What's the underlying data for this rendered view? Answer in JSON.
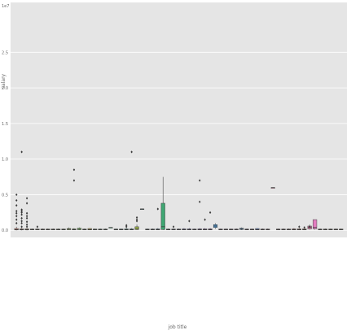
{
  "chart_data": {
    "type": "box",
    "title": "",
    "xlabel": "job title",
    "ylabel": "salary",
    "y_unit_label": "1e7",
    "ylim": [
      -0.1,
      3.2
    ],
    "y_ticks": [
      0.0,
      0.5,
      1.0,
      1.5,
      2.0,
      2.5
    ],
    "y_tick_labels": [
      "0.0",
      "0.5",
      "1.0",
      "1.5",
      "2.0",
      "2.5"
    ],
    "grid": true,
    "legend": "none",
    "background": "#e5e5e5",
    "categories_shown_count": 63,
    "boxes": [
      {
        "i": 1,
        "q1": 0.005,
        "median": 0.012,
        "q3": 0.025,
        "whisker_low": 0.0,
        "whisker_high": 0.05,
        "outliers": [
          0.1,
          0.15,
          0.2,
          0.24,
          0.27,
          0.35,
          0.42,
          0.5
        ],
        "color": "#e58a7c"
      },
      {
        "i": 2,
        "q1": 0.005,
        "median": 0.012,
        "q3": 0.02,
        "whisker_low": 0.0,
        "whisker_high": 0.03,
        "outliers": [
          0.05,
          0.1,
          0.13,
          0.17,
          0.22,
          0.25,
          0.27,
          0.29,
          1.1
        ],
        "color": "#dc8f6a"
      },
      {
        "i": 3,
        "q1": 0.005,
        "median": 0.012,
        "q3": 0.02,
        "whisker_low": 0.0,
        "whisker_high": 0.03,
        "outliers": [
          0.05,
          0.08,
          0.12,
          0.17,
          0.2,
          0.24,
          0.38,
          0.45
        ],
        "color": "#d69a62"
      },
      {
        "i": 4,
        "q1": 0.006,
        "median": 0.012,
        "q3": 0.018,
        "whisker_low": 0.003,
        "whisker_high": 0.024,
        "outliers": [],
        "color": "#d2a060"
      },
      {
        "i": 5,
        "q1": 0.006,
        "median": 0.012,
        "q3": 0.018,
        "whisker_low": 0.003,
        "whisker_high": 0.024,
        "outliers": [
          0.05
        ],
        "color": "#cca55c"
      },
      {
        "i": 6,
        "q1": 0.006,
        "median": 0.012,
        "q3": 0.018,
        "whisker_low": 0.003,
        "whisker_high": 0.024,
        "outliers": [],
        "color": "#c5aa5a"
      },
      {
        "i": 7,
        "q1": 0.006,
        "median": 0.012,
        "q3": 0.018,
        "whisker_low": 0.003,
        "whisker_high": 0.024,
        "outliers": [],
        "color": "#beaf58"
      },
      {
        "i": 8,
        "q1": 0.006,
        "median": 0.012,
        "q3": 0.018,
        "whisker_low": 0.003,
        "whisker_high": 0.024,
        "outliers": [],
        "color": "#b6b457"
      },
      {
        "i": 9,
        "q1": 0.006,
        "median": 0.012,
        "q3": 0.018,
        "whisker_low": 0.003,
        "whisker_high": 0.024,
        "outliers": [],
        "color": "#adb856"
      },
      {
        "i": 10,
        "q1": 0.006,
        "median": 0.012,
        "q3": 0.018,
        "whisker_low": 0.003,
        "whisker_high": 0.024,
        "outliers": [],
        "color": "#a3bc57"
      },
      {
        "i": 11,
        "q1": 0.008,
        "median": 0.015,
        "q3": 0.025,
        "whisker_low": 0.003,
        "whisker_high": 0.04,
        "outliers": [],
        "color": "#98c05a"
      },
      {
        "i": 12,
        "q1": 0.006,
        "median": 0.012,
        "q3": 0.02,
        "whisker_low": 0.003,
        "whisker_high": 0.03,
        "outliers": [
          0.7,
          0.85
        ],
        "color": "#8cc35e"
      },
      {
        "i": 13,
        "q1": 0.008,
        "median": 0.015,
        "q3": 0.03,
        "whisker_low": 0.003,
        "whisker_high": 0.04,
        "outliers": [],
        "color": "#7fc563"
      },
      {
        "i": 14,
        "q1": 0.006,
        "median": 0.012,
        "q3": 0.018,
        "whisker_low": 0.003,
        "whisker_high": 0.024,
        "outliers": [],
        "color": "#72c66a"
      },
      {
        "i": 15,
        "q1": 0.006,
        "median": 0.012,
        "q3": 0.025,
        "whisker_low": 0.003,
        "whisker_high": 0.03,
        "outliers": [],
        "color": "#c8b45a"
      },
      {
        "i": 16,
        "q1": 0.006,
        "median": 0.012,
        "q3": 0.018,
        "whisker_low": 0.003,
        "whisker_high": 0.024,
        "outliers": [],
        "color": "#64c772"
      },
      {
        "i": 17,
        "q1": 0.006,
        "median": 0.012,
        "q3": 0.018,
        "whisker_low": 0.003,
        "whisker_high": 0.024,
        "outliers": [],
        "color": "#5cc77c"
      },
      {
        "i": 18,
        "q1": 0.006,
        "median": 0.012,
        "q3": 0.018,
        "whisker_low": 0.003,
        "whisker_high": 0.024,
        "outliers": [],
        "color": "#56c687"
      },
      {
        "i": 19,
        "q1": 0.04,
        "median": 0.04,
        "q3": 0.04,
        "whisker_low": 0.04,
        "whisker_high": 0.04,
        "outliers": [],
        "color": "#52c491"
      },
      {
        "i": 20,
        "q1": 0.006,
        "median": 0.012,
        "q3": 0.018,
        "whisker_low": 0.003,
        "whisker_high": 0.024,
        "outliers": [],
        "color": "#50c29b"
      },
      {
        "i": 21,
        "q1": 0.006,
        "median": 0.012,
        "q3": 0.018,
        "whisker_low": 0.003,
        "whisker_high": 0.024,
        "outliers": [],
        "color": "#50bfa4"
      },
      {
        "i": 22,
        "q1": 0.006,
        "median": 0.012,
        "q3": 0.02,
        "whisker_low": 0.003,
        "whisker_high": 0.03,
        "outliers": [
          0.05,
          0.07
        ],
        "color": "#52bcad"
      },
      {
        "i": 23,
        "q1": 0.006,
        "median": 0.012,
        "q3": 0.02,
        "whisker_low": 0.003,
        "whisker_high": 0.03,
        "outliers": [
          1.1
        ],
        "color": "#55b8b5"
      },
      {
        "i": 24,
        "q1": 0.01,
        "median": 0.025,
        "q3": 0.05,
        "whisker_low": 0.003,
        "whisker_high": 0.08,
        "outliers": [
          0.13,
          0.15,
          0.18
        ],
        "color": "#9cb34a"
      },
      {
        "i": 25,
        "q1": 0.3,
        "median": 0.3,
        "q3": 0.3,
        "whisker_low": 0.3,
        "whisker_high": 0.3,
        "outliers": [],
        "color": "#5ab3bd"
      },
      {
        "i": 26,
        "q1": 0.006,
        "median": 0.012,
        "q3": 0.018,
        "whisker_low": 0.003,
        "whisker_high": 0.024,
        "outliers": [],
        "color": "#5fadc4"
      },
      {
        "i": 27,
        "q1": 0.006,
        "median": 0.012,
        "q3": 0.018,
        "whisker_low": 0.003,
        "whisker_high": 0.024,
        "outliers": [],
        "color": "#65a7ca"
      },
      {
        "i": 28,
        "q1": 0.006,
        "median": 0.012,
        "q3": 0.02,
        "whisker_low": 0.003,
        "whisker_high": 0.03,
        "outliers": [
          0.3
        ],
        "color": "#6ba0d0"
      },
      {
        "i": 29,
        "q1": 0.01,
        "median": 0.05,
        "q3": 0.38,
        "whisker_low": 0.003,
        "whisker_high": 0.75,
        "outliers": [],
        "color": "#3fa673"
      },
      {
        "i": 30,
        "q1": 0.006,
        "median": 0.012,
        "q3": 0.018,
        "whisker_low": 0.003,
        "whisker_high": 0.024,
        "outliers": [],
        "color": "#7199d4"
      },
      {
        "i": 31,
        "q1": 0.006,
        "median": 0.012,
        "q3": 0.018,
        "whisker_low": 0.003,
        "whisker_high": 0.024,
        "outliers": [
          0.05
        ],
        "color": "#7892d8"
      },
      {
        "i": 32,
        "q1": 0.006,
        "median": 0.012,
        "q3": 0.018,
        "whisker_low": 0.003,
        "whisker_high": 0.024,
        "outliers": [],
        "color": "#7f8adb"
      },
      {
        "i": 33,
        "q1": 0.006,
        "median": 0.012,
        "q3": 0.02,
        "whisker_low": 0.003,
        "whisker_high": 0.03,
        "outliers": [],
        "color": "#8782dd"
      },
      {
        "i": 34,
        "q1": 0.006,
        "median": 0.012,
        "q3": 0.02,
        "whisker_low": 0.003,
        "whisker_high": 0.03,
        "outliers": [
          0.13
        ],
        "color": "#8f7bde"
      },
      {
        "i": 35,
        "q1": 0.006,
        "median": 0.012,
        "q3": 0.018,
        "whisker_low": 0.003,
        "whisker_high": 0.024,
        "outliers": [],
        "color": "#9874dd"
      },
      {
        "i": 36,
        "q1": 0.006,
        "median": 0.012,
        "q3": 0.02,
        "whisker_low": 0.003,
        "whisker_high": 0.03,
        "outliers": [
          0.4,
          0.7
        ],
        "color": "#a06edb"
      },
      {
        "i": 37,
        "q1": 0.006,
        "median": 0.012,
        "q3": 0.02,
        "whisker_low": 0.003,
        "whisker_high": 0.03,
        "outliers": [
          0.15
        ],
        "color": "#a969d8"
      },
      {
        "i": 38,
        "q1": 0.006,
        "median": 0.012,
        "q3": 0.02,
        "whisker_low": 0.003,
        "whisker_high": 0.03,
        "outliers": [
          0.25
        ],
        "color": "#b165d4"
      },
      {
        "i": 39,
        "q1": 0.04,
        "median": 0.06,
        "q3": 0.08,
        "whisker_low": 0.02,
        "whisker_high": 0.1,
        "outliers": [],
        "color": "#4a8fc8"
      },
      {
        "i": 40,
        "q1": 0.006,
        "median": 0.012,
        "q3": 0.018,
        "whisker_low": 0.003,
        "whisker_high": 0.024,
        "outliers": [],
        "color": "#b962cf"
      },
      {
        "i": 41,
        "q1": 0.006,
        "median": 0.012,
        "q3": 0.018,
        "whisker_low": 0.003,
        "whisker_high": 0.024,
        "outliers": [],
        "color": "#c05fc9"
      },
      {
        "i": 42,
        "q1": 0.006,
        "median": 0.012,
        "q3": 0.018,
        "whisker_low": 0.003,
        "whisker_high": 0.024,
        "outliers": [],
        "color": "#c75dc2"
      },
      {
        "i": 43,
        "q1": 0.006,
        "median": 0.012,
        "q3": 0.018,
        "whisker_low": 0.003,
        "whisker_high": 0.024,
        "outliers": [],
        "color": "#cd5cbb"
      },
      {
        "i": 44,
        "q1": 0.01,
        "median": 0.02,
        "q3": 0.03,
        "whisker_low": 0.003,
        "whisker_high": 0.04,
        "outliers": [],
        "color": "#5a9bd2"
      },
      {
        "i": 45,
        "q1": 0.006,
        "median": 0.012,
        "q3": 0.018,
        "whisker_low": 0.003,
        "whisker_high": 0.024,
        "outliers": [],
        "color": "#d25cb3"
      },
      {
        "i": 46,
        "q1": 0.006,
        "median": 0.012,
        "q3": 0.018,
        "whisker_low": 0.003,
        "whisker_high": 0.024,
        "outliers": [],
        "color": "#d65dab"
      },
      {
        "i": 47,
        "q1": 0.006,
        "median": 0.012,
        "q3": 0.025,
        "whisker_low": 0.003,
        "whisker_high": 0.03,
        "outliers": [],
        "color": "#6f8fd8"
      },
      {
        "i": 48,
        "q1": 0.006,
        "median": 0.012,
        "q3": 0.018,
        "whisker_low": 0.003,
        "whisker_high": 0.024,
        "outliers": [],
        "color": "#d95fa3"
      },
      {
        "i": 49,
        "q1": 0.006,
        "median": 0.012,
        "q3": 0.018,
        "whisker_low": 0.003,
        "whisker_high": 0.024,
        "outliers": [],
        "color": "#db639b"
      },
      {
        "i": 50,
        "q1": 0.6,
        "median": 0.6,
        "q3": 0.6,
        "whisker_low": 0.6,
        "whisker_high": 0.6,
        "outliers": [],
        "color": "#dd6893"
      },
      {
        "i": 51,
        "q1": 0.006,
        "median": 0.012,
        "q3": 0.018,
        "whisker_low": 0.003,
        "whisker_high": 0.024,
        "outliers": [],
        "color": "#de6d8b"
      },
      {
        "i": 52,
        "q1": 0.006,
        "median": 0.012,
        "q3": 0.018,
        "whisker_low": 0.003,
        "whisker_high": 0.024,
        "outliers": [],
        "color": "#df7383"
      },
      {
        "i": 53,
        "q1": 0.006,
        "median": 0.012,
        "q3": 0.018,
        "whisker_low": 0.003,
        "whisker_high": 0.024,
        "outliers": [],
        "color": "#df797b"
      },
      {
        "i": 54,
        "q1": 0.006,
        "median": 0.012,
        "q3": 0.02,
        "whisker_low": 0.003,
        "whisker_high": 0.03,
        "outliers": [],
        "color": "#de8074"
      },
      {
        "i": 55,
        "q1": 0.006,
        "median": 0.012,
        "q3": 0.02,
        "whisker_low": 0.003,
        "whisker_high": 0.03,
        "outliers": [
          0.05
        ],
        "color": "#dd866d"
      },
      {
        "i": 56,
        "q1": 0.006,
        "median": 0.012,
        "q3": 0.02,
        "whisker_low": 0.003,
        "whisker_high": 0.03,
        "outliers": [
          0.04
        ],
        "color": "#db8c67"
      },
      {
        "i": 57,
        "q1": 0.02,
        "median": 0.04,
        "q3": 0.06,
        "whisker_low": 0.01,
        "whisker_high": 0.08,
        "outliers": [
          0.05
        ],
        "color": "#e07aa8"
      },
      {
        "i": 58,
        "q1": 0.02,
        "median": 0.04,
        "q3": 0.15,
        "whisker_low": 0.01,
        "whisker_high": 0.15,
        "outliers": [],
        "color": "#e47bc0"
      },
      {
        "i": 59,
        "q1": 0.006,
        "median": 0.012,
        "q3": 0.018,
        "whisker_low": 0.003,
        "whisker_high": 0.024,
        "outliers": [],
        "color": "#d89262"
      },
      {
        "i": 60,
        "q1": 0.006,
        "median": 0.012,
        "q3": 0.018,
        "whisker_low": 0.003,
        "whisker_high": 0.024,
        "outliers": [],
        "color": "#d4985e"
      },
      {
        "i": 61,
        "q1": 0.006,
        "median": 0.012,
        "q3": 0.018,
        "whisker_low": 0.003,
        "whisker_high": 0.024,
        "outliers": [],
        "color": "#cf9e5b"
      },
      {
        "i": 62,
        "q1": 0.006,
        "median": 0.012,
        "q3": 0.018,
        "whisker_low": 0.003,
        "whisker_high": 0.024,
        "outliers": [],
        "color": "#c9a459"
      },
      {
        "i": 63,
        "q1": 0.006,
        "median": 0.012,
        "q3": 0.018,
        "whisker_low": 0.003,
        "whisker_high": 0.024,
        "outliers": [],
        "color": "#c3a957"
      }
    ]
  }
}
